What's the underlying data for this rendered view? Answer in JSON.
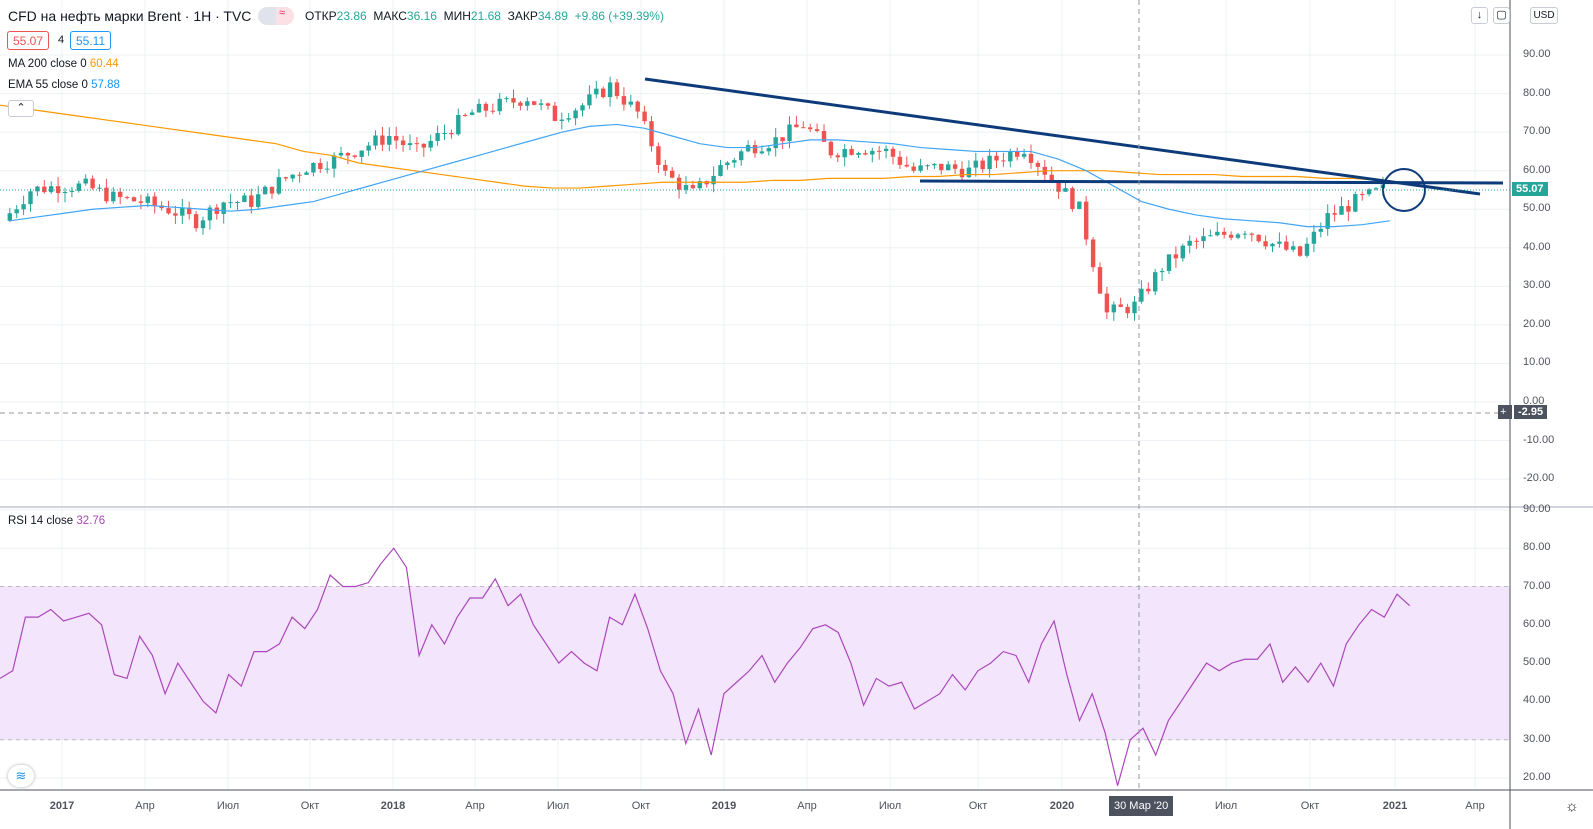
{
  "header": {
    "title": "CFD на нефть марки Brent · 1H · TVC",
    "ohlc": [
      {
        "k": "ОТКР",
        "v": "23.86"
      },
      {
        "k": "МАКС",
        "v": "36.16"
      },
      {
        "k": "МИН",
        "v": "21.68"
      },
      {
        "k": "ЗАКР",
        "v": "34.89"
      }
    ],
    "change": "+9.86 (+39.39%)",
    "sell": "55.07",
    "spread": "4",
    "buy": "55.11",
    "currency": "USD"
  },
  "indicators": {
    "ma": {
      "label": "MA 200 close 0",
      "value": "60.44"
    },
    "ema": {
      "label": "EMA 55 close 0",
      "value": "57.88"
    },
    "rsi": {
      "label": "RSI 14 close",
      "value": "32.76"
    }
  },
  "crosshair": {
    "price": "-2.95",
    "date": "30 Мар '20"
  },
  "last_price": "55.07",
  "colors": {
    "up": "#26a69a",
    "down": "#ef5350",
    "ma": "#ff9800",
    "ema": "#42a5f5",
    "rsi": "#ab47bc",
    "trend": "#0d3b7a"
  },
  "chart_data": [
    {
      "type": "candlestick",
      "title": "CFD на нефть марки Brent",
      "start_month": "2016-11",
      "monthly_close": [
        47,
        55,
        56,
        56,
        53,
        52,
        50,
        47,
        52,
        52,
        57,
        61,
        63,
        66,
        69,
        65,
        70,
        75,
        77,
        79,
        74,
        77,
        82,
        75,
        59,
        54,
        61,
        66,
        68,
        72,
        65,
        66,
        65,
        60,
        61,
        60,
        63,
        66,
        58,
        50,
        23,
        25,
        35,
        41,
        43,
        45,
        41,
        38,
        48,
        52,
        55
      ],
      "ma200_monthly": [
        77,
        76,
        75,
        74,
        73,
        72,
        71,
        70,
        69,
        68,
        67,
        65,
        64,
        62,
        61,
        60,
        59,
        58,
        57,
        56,
        55.5,
        55.5,
        56,
        56.5,
        57,
        57,
        57,
        57,
        57.5,
        57.5,
        58,
        58,
        58,
        58.5,
        58.5,
        59,
        59,
        59.5,
        60,
        60,
        60,
        59.5,
        59,
        59,
        59,
        58.5,
        58.5,
        58.5,
        58,
        58,
        57.5
      ],
      "ema55_monthly": [
        47,
        48,
        49,
        50,
        50.5,
        51,
        50.5,
        50,
        49.5,
        50,
        51,
        52,
        54,
        56,
        58,
        60,
        62,
        64,
        66,
        68,
        70,
        71.5,
        72,
        71,
        69,
        67,
        66,
        66,
        67,
        68,
        68,
        67.5,
        67,
        66,
        65.5,
        65,
        65,
        65,
        63,
        60,
        56,
        52,
        50,
        48.5,
        47.5,
        47,
        46.5,
        45.5,
        45.5,
        46,
        47
      ],
      "ylim": [
        -20,
        100
      ],
      "yticks": [
        "90.00",
        "80.00",
        "70.00",
        "60.00",
        "50.00",
        "40.00",
        "30.00",
        "20.00",
        "10.00",
        "0.00",
        "-10.00",
        "-20.00"
      ],
      "xticks": [
        "2017",
        "Апр",
        "Июл",
        "Окт",
        "2018",
        "Апр",
        "Июл",
        "Окт",
        "2019",
        "Апр",
        "Июл",
        "Окт",
        "2020",
        "Июл",
        "Окт",
        "2021",
        "Апр"
      ]
    },
    {
      "type": "line",
      "title": "RSI 14 close",
      "ylim": [
        15,
        90
      ],
      "bands": [
        30,
        70
      ],
      "yticks": [
        "90.00",
        "80.00",
        "70.00",
        "60.00",
        "50.00",
        "40.00",
        "30.00",
        "20.00"
      ],
      "values": [
        46,
        48,
        62,
        62,
        64,
        61,
        62,
        63,
        60,
        47,
        46,
        57,
        52,
        42,
        50,
        45,
        40,
        37,
        47,
        44,
        53,
        53,
        55,
        62,
        59,
        64,
        73,
        70,
        70,
        71,
        76,
        80,
        75,
        52,
        60,
        55,
        62,
        67,
        67,
        72,
        65,
        68,
        60,
        55,
        50,
        53,
        50,
        48,
        62,
        60,
        68,
        59,
        48,
        42,
        29,
        38,
        26,
        42,
        45,
        48,
        52,
        45,
        50,
        54,
        59,
        60,
        58,
        50,
        39,
        46,
        44,
        45,
        38,
        40,
        42,
        47,
        43,
        48,
        50,
        53,
        52,
        45,
        55,
        61,
        47,
        35,
        42,
        32,
        18,
        30,
        33,
        26,
        35,
        40,
        45,
        50,
        48,
        50,
        51,
        51,
        55,
        45,
        49,
        45,
        50,
        44,
        55,
        60,
        64,
        62,
        68,
        65
      ]
    }
  ]
}
